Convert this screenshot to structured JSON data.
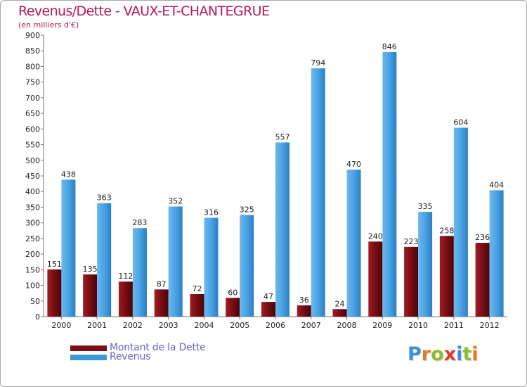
{
  "title": "Revenus/Dette - VAUX-ET-CHANTEGRUE",
  "subtitle": "(en milliers d'€)",
  "colors": {
    "dette": "#7a0e14",
    "revenus": "#3d98dc",
    "title": "#b2185a",
    "legend_text": "#6b62d4"
  },
  "chart_data": {
    "type": "bar",
    "categories": [
      "2000",
      "2001",
      "2002",
      "2003",
      "2004",
      "2005",
      "2006",
      "2007",
      "2008",
      "2009",
      "2010",
      "2011",
      "2012"
    ],
    "series": [
      {
        "name": "Montant de la Dette",
        "values": [
          151,
          135,
          112,
          87,
          72,
          60,
          47,
          36,
          24,
          240,
          223,
          258,
          236
        ]
      },
      {
        "name": "Revenus",
        "values": [
          438,
          363,
          283,
          352,
          316,
          325,
          557,
          794,
          470,
          846,
          335,
          604,
          404
        ]
      }
    ],
    "ylim": [
      0,
      900
    ],
    "yticks": [
      0,
      50,
      100,
      150,
      200,
      250,
      300,
      350,
      400,
      450,
      500,
      550,
      600,
      650,
      700,
      750,
      800,
      850,
      900
    ],
    "grid": false,
    "legend": "bottom-left"
  },
  "legend": [
    {
      "label": "Montant de la Dette",
      "icon": "dark-red-bar-swatch"
    },
    {
      "label": "Revenus",
      "icon": "blue-bar-swatch"
    }
  ],
  "logo": {
    "text": "Proxiti",
    "letters": [
      {
        "ch": "P",
        "color": "#3d8fd6"
      },
      {
        "ch": "r",
        "color": "#e8791e"
      },
      {
        "ch": "o",
        "color": "#8cbd2e"
      },
      {
        "ch": "x",
        "color": "#e53a2a"
      },
      {
        "ch": "i",
        "color": "#3d8fd6"
      },
      {
        "ch": "t",
        "color": "#8cbd2e"
      },
      {
        "ch": "i",
        "color": "#e8791e"
      }
    ]
  }
}
